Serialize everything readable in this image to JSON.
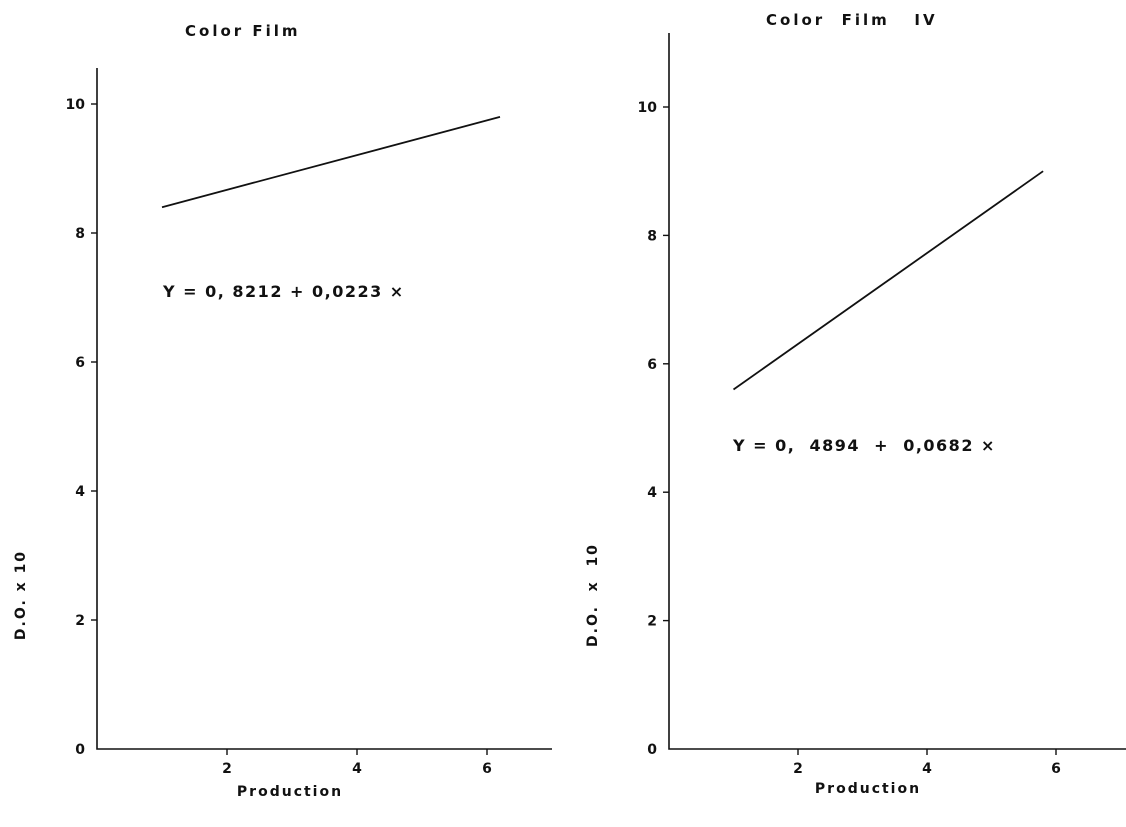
{
  "chart_data": [
    {
      "type": "line",
      "title": "Color Film",
      "xlabel": "Production",
      "ylabel": "D.O. x 10",
      "xlim": [
        0,
        7
      ],
      "ylim": [
        0,
        10
      ],
      "x_ticks": [
        "2",
        "4",
        "6"
      ],
      "y_ticks": [
        "0",
        "2",
        "4",
        "6",
        "8",
        "10"
      ],
      "grid": false,
      "series": [
        {
          "x": [
            1,
            6.2
          ],
          "y": [
            8.4,
            9.8
          ]
        }
      ],
      "annotation": "Y = 0, 8212  +  0,0223 ×"
    },
    {
      "type": "line",
      "title": "Color  Film   IV",
      "xlabel": "Production",
      "ylabel": "D.O.  x  10",
      "xlim": [
        0,
        7
      ],
      "ylim": [
        0,
        10
      ],
      "x_ticks": [
        "2",
        "4",
        "6"
      ],
      "y_ticks": [
        "0",
        "2",
        "4",
        "6",
        "8",
        "10"
      ],
      "grid": false,
      "series": [
        {
          "x": [
            1,
            5.8
          ],
          "y": [
            5.6,
            9.0
          ]
        }
      ],
      "annotation": "Y = 0,  4894  +  0,0682 ×"
    }
  ]
}
